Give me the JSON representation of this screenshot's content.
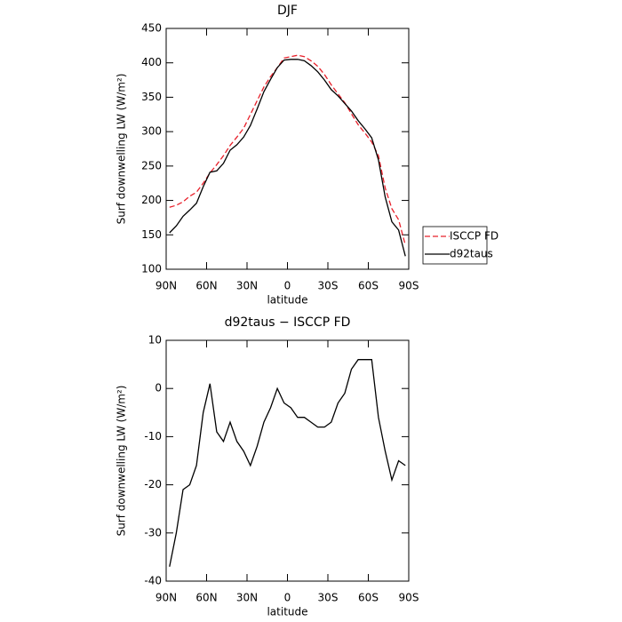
{
  "chart_data": [
    {
      "type": "line",
      "title": "DJF",
      "x_label": "latitude",
      "y_label": "Surf downwelling LW (W/m²)",
      "xlim": [
        90,
        -90
      ],
      "xticks": [
        {
          "value": 90,
          "label": "90N"
        },
        {
          "value": 60,
          "label": "60N"
        },
        {
          "value": 30,
          "label": "30N"
        },
        0,
        {
          "value": -30,
          "label": "30S"
        },
        {
          "value": -60,
          "label": "60S"
        },
        {
          "value": -90,
          "label": "90S"
        }
      ],
      "ylim": [
        100,
        450
      ],
      "yticks": [
        100,
        150,
        200,
        250,
        300,
        350,
        400,
        450
      ],
      "x": [
        87.5,
        82.5,
        77.5,
        72.5,
        67.5,
        62.5,
        57.5,
        52.5,
        47.5,
        42.5,
        37.5,
        32.5,
        27.5,
        22.5,
        17.5,
        12.5,
        7.5,
        2.5,
        -2.5,
        -7.5,
        -12.5,
        -17.5,
        -22.5,
        -27.5,
        -32.5,
        -37.5,
        -42.5,
        -47.5,
        -52.5,
        -57.5,
        -62.5,
        -67.5,
        -72.5,
        -77.5,
        -82.5,
        -87.5
      ],
      "legend": "right",
      "series": [
        {
          "name": "ISCCP FD",
          "color": "#e8202a",
          "dash": true,
          "values": [
            190,
            193,
            198,
            206,
            212,
            225,
            240,
            252,
            265,
            280,
            292,
            305,
            325,
            345,
            365,
            380,
            393,
            407,
            409,
            411,
            409,
            403,
            395,
            383,
            368,
            355,
            342,
            326,
            310,
            298,
            285,
            265,
            218,
            188,
            172,
            135
          ]
        },
        {
          "name": "d92taus",
          "color": "#000000",
          "dash": false,
          "values": [
            153,
            163,
            177,
            186,
            196,
            220,
            241,
            243,
            254,
            273,
            281,
            292,
            309,
            333,
            358,
            376,
            393,
            404,
            405,
            405,
            403,
            396,
            387,
            375,
            361,
            352,
            341,
            330,
            316,
            304,
            291,
            259,
            205,
            169,
            157,
            119
          ]
        }
      ]
    },
    {
      "type": "line",
      "title": "d92taus − ISCCP FD",
      "x_label": "latitude",
      "y_label": "Surf downwelling LW (W/m²)",
      "xlim": [
        90,
        -90
      ],
      "xticks": [
        {
          "value": 90,
          "label": "90N"
        },
        {
          "value": 60,
          "label": "60N"
        },
        {
          "value": 30,
          "label": "30N"
        },
        0,
        {
          "value": -30,
          "label": "30S"
        },
        {
          "value": -60,
          "label": "60S"
        },
        {
          "value": -90,
          "label": "90S"
        }
      ],
      "ylim": [
        -40,
        10
      ],
      "yticks": [
        -40,
        -30,
        -20,
        -10,
        0,
        10
      ],
      "x": [
        87.5,
        82.5,
        77.5,
        72.5,
        67.5,
        62.5,
        57.5,
        52.5,
        47.5,
        42.5,
        37.5,
        32.5,
        27.5,
        22.5,
        17.5,
        12.5,
        7.5,
        2.5,
        -2.5,
        -7.5,
        -12.5,
        -17.5,
        -22.5,
        -27.5,
        -32.5,
        -37.5,
        -42.5,
        -47.5,
        -52.5,
        -57.5,
        -62.5,
        -67.5,
        -72.5,
        -77.5,
        -82.5,
        -87.5
      ],
      "color": "#000000",
      "values": [
        -37,
        -30,
        -21,
        -20,
        -16,
        -5,
        1,
        -9,
        -11,
        -7,
        -11,
        -13,
        -16,
        -12,
        -7,
        -4,
        0,
        -3,
        -4,
        -6,
        -6,
        -7,
        -8,
        -8,
        -7,
        -3,
        -1,
        4,
        6,
        6,
        6,
        -6,
        -13,
        -19,
        -15,
        -16
      ]
    }
  ]
}
